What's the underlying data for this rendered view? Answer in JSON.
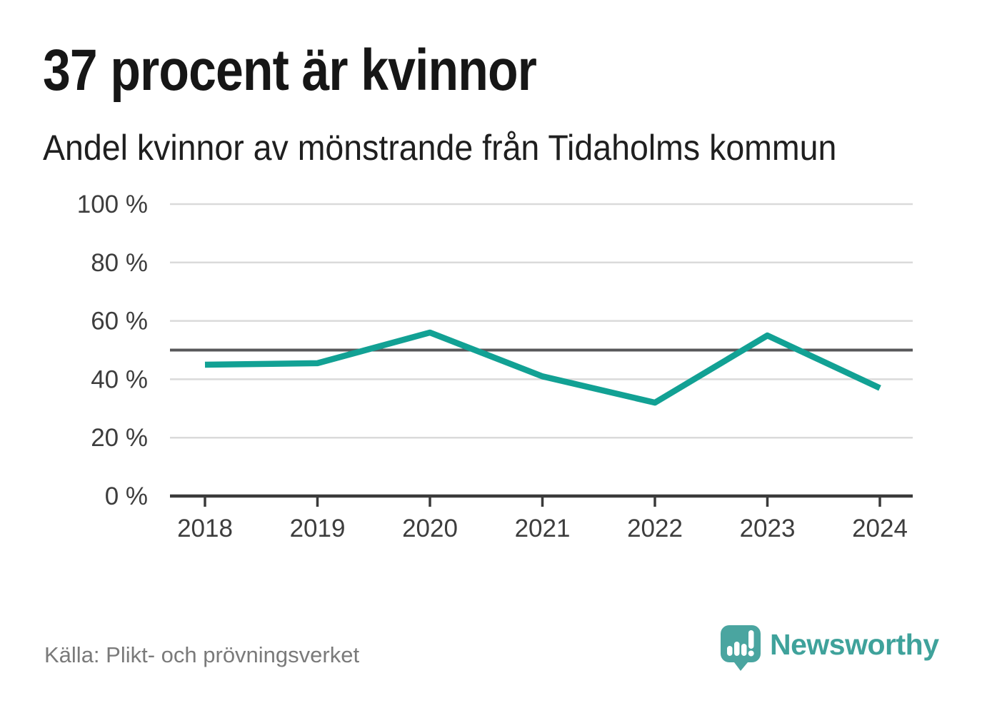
{
  "header": {
    "title": "37 procent är kvinnor",
    "subtitle": "Andel kvinnor av mönstrande från Tidaholms kommun"
  },
  "chart_data": {
    "type": "line",
    "title": "37 procent är kvinnor",
    "subtitle": "Andel kvinnor av mönstrande från Tidaholms kommun",
    "categories": [
      "2018",
      "2019",
      "2020",
      "2021",
      "2022",
      "2023",
      "2024"
    ],
    "series": [
      {
        "name": "Andel kvinnor av mönstrande",
        "values": [
          45,
          45.5,
          56,
          41,
          32,
          55,
          37
        ]
      }
    ],
    "unit": "%",
    "ylim": [
      0,
      100
    ],
    "yticks": [
      0,
      20,
      40,
      60,
      80,
      100
    ],
    "ytick_suffix": " %",
    "reference_line": 50,
    "grid": "horizontal",
    "legend": "none",
    "colors": {
      "line": "#12a194",
      "reference_line": "#58585a",
      "gridline": "#dadada",
      "axis": "#3a3a3a",
      "tick_label": "#3d3d3d"
    }
  },
  "footer": {
    "source": "Källa: Plikt- och prövningsverket",
    "brand": "Newsworthy",
    "brand_color": "#3fa29b",
    "brand_icon": "speech-bubble-bar-chart-exclamation",
    "brand_icon_color": "#4aa5a0"
  }
}
